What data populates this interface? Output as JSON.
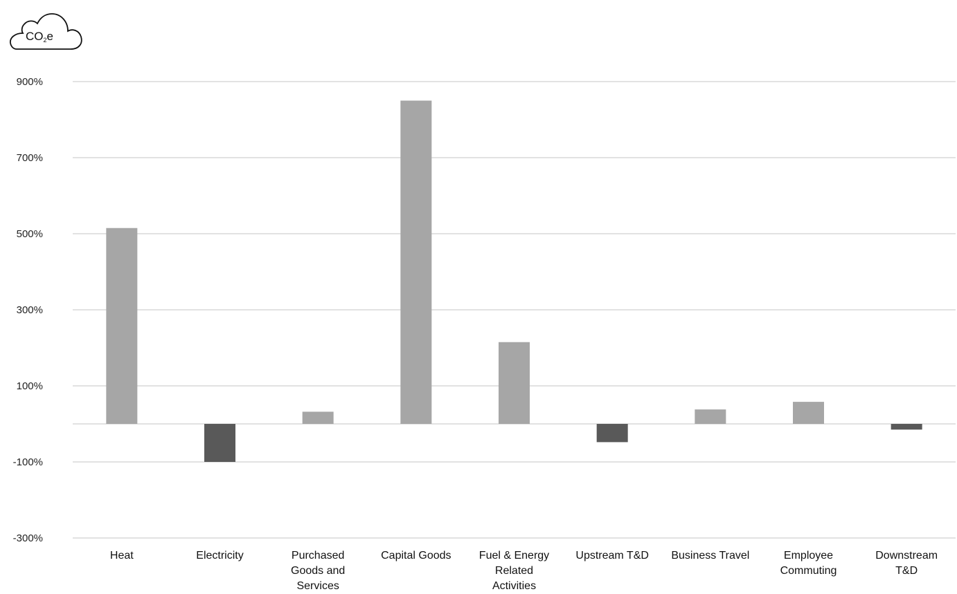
{
  "badge": {
    "prefix": "CO",
    "sub": "2",
    "suffix": "e",
    "icon": "cloud-icon"
  },
  "chart_data": {
    "type": "bar",
    "categories": [
      [
        "Heat"
      ],
      [
        "Electricity"
      ],
      [
        "Purchased",
        "Goods and",
        "Services"
      ],
      [
        "Capital Goods"
      ],
      [
        "Fuel & Energy",
        "Related",
        "Activities"
      ],
      [
        "Upstream T&D"
      ],
      [
        "Business Travel"
      ],
      [
        "Employee",
        "Commuting"
      ],
      [
        "Downstream",
        "T&D"
      ]
    ],
    "values": [
      515,
      -100,
      32,
      850,
      215,
      -48,
      38,
      58,
      -15
    ],
    "ylim": [
      -300,
      900
    ],
    "yticks": [
      900,
      700,
      500,
      300,
      100,
      -100,
      -300
    ],
    "ytick_labels": [
      "900%",
      "700%",
      "500%",
      "300%",
      "100%",
      "-100%",
      "-300%"
    ],
    "colors": {
      "positive": "#a6a6a6",
      "negative": "#595959",
      "grid": "#d9d9d9",
      "zero": "#d9d9d9"
    },
    "title": "",
    "xlabel": "",
    "ylabel": "",
    "grid": true,
    "legend": "none"
  }
}
